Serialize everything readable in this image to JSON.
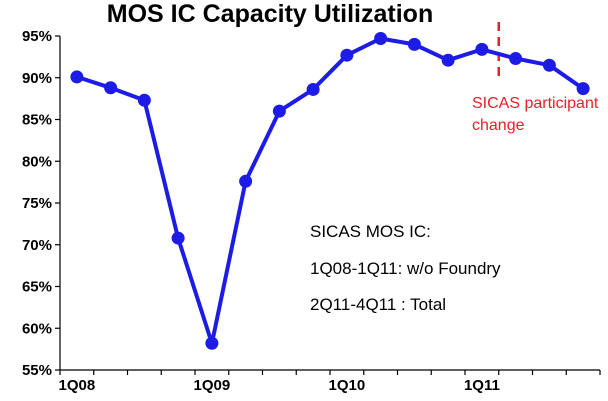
{
  "chart_data": {
    "type": "line",
    "title": "MOS IC Capacity Utilization",
    "xlabel": "",
    "ylabel": "",
    "y_unit": "%",
    "ylim": [
      55,
      95
    ],
    "yticks": [
      55,
      60,
      65,
      70,
      75,
      80,
      85,
      90,
      95
    ],
    "ytick_labels": [
      "55%",
      "60%",
      "65%",
      "70%",
      "75%",
      "80%",
      "85%",
      "90%",
      "95%"
    ],
    "grid": false,
    "x": [
      "1Q08",
      "2Q08",
      "3Q08",
      "4Q08",
      "1Q09",
      "2Q09",
      "3Q09",
      "4Q09",
      "1Q10",
      "2Q10",
      "3Q10",
      "4Q10",
      "1Q11",
      "2Q11",
      "3Q11",
      "4Q11"
    ],
    "xtick_labels": [
      "1Q08",
      "1Q09",
      "1Q10",
      "1Q11"
    ],
    "series": [
      {
        "name": "",
        "color": "#1c1ce6",
        "values": [
          90.1,
          88.8,
          87.3,
          70.8,
          58.2,
          77.6,
          86.0,
          88.6,
          92.7,
          94.7,
          94.0,
          92.1,
          93.4,
          92.3,
          91.5,
          88.7
        ]
      }
    ],
    "annotations": {
      "sicas_change": {
        "between": [
          "1Q11",
          "2Q11"
        ],
        "text_lines": [
          "SICAS participant",
          "change"
        ],
        "color": "#e8202a"
      },
      "note_lines": [
        "SICAS MOS IC:",
        "1Q08-1Q11: w/o Foundry",
        "2Q11-4Q11 : Total"
      ]
    }
  }
}
